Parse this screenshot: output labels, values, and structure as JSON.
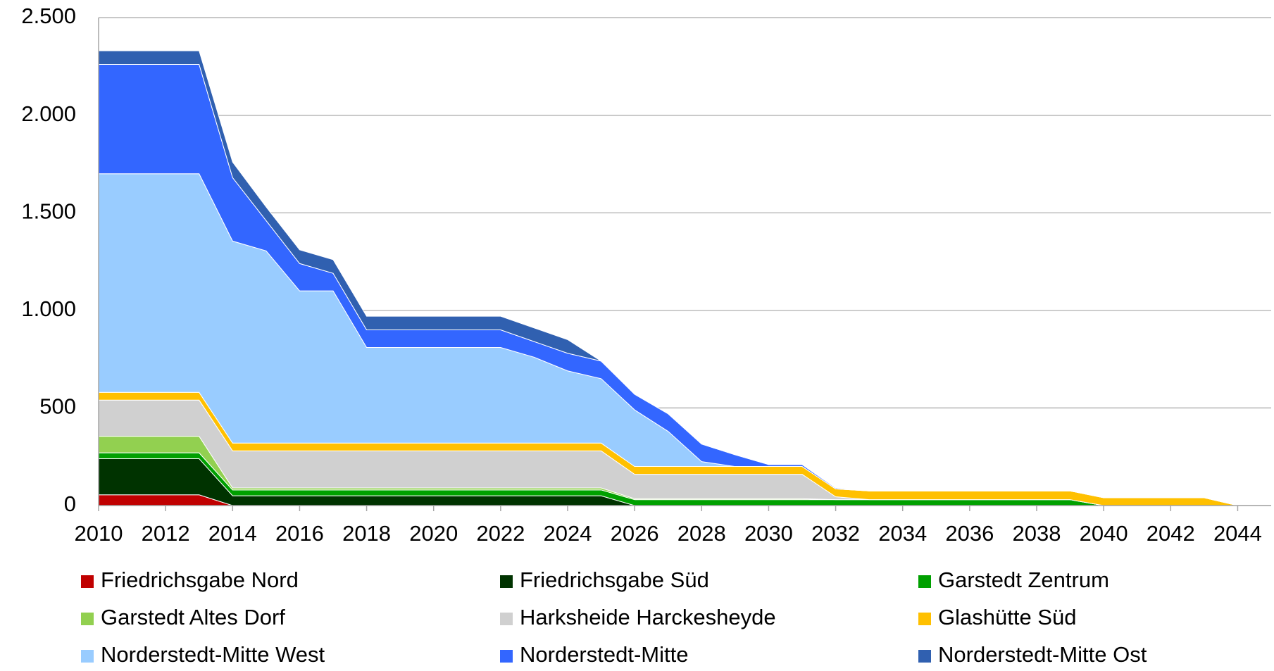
{
  "chart_data": {
    "type": "stacked_area",
    "x": [
      2010,
      2011,
      2012,
      2013,
      2014,
      2015,
      2016,
      2017,
      2018,
      2019,
      2020,
      2021,
      2022,
      2023,
      2024,
      2025,
      2026,
      2027,
      2028,
      2029,
      2030,
      2031,
      2032,
      2033,
      2034,
      2035,
      2036,
      2037,
      2038,
      2039,
      2040,
      2041,
      2042,
      2043,
      2044
    ],
    "xlim": [
      2010,
      2045
    ],
    "xticks": [
      2010,
      2012,
      2014,
      2016,
      2018,
      2020,
      2022,
      2024,
      2026,
      2028,
      2030,
      2032,
      2034,
      2036,
      2038,
      2040,
      2042,
      2044
    ],
    "ylim": [
      0,
      2500
    ],
    "yticks": [
      0,
      500,
      {
        "value": 1000,
        "label": "1.000"
      },
      {
        "value": 1500,
        "label": "1.500"
      },
      {
        "value": 2000,
        "label": "2.000"
      },
      {
        "value": 2500,
        "label": "2.500"
      }
    ],
    "grid": true,
    "legend": "bottom",
    "series": [
      {
        "name": "Friedrichsgabe Nord",
        "color": "#c00000",
        "values": [
          55,
          55,
          55,
          55,
          0,
          0,
          0,
          0,
          0,
          0,
          0,
          0,
          0,
          0,
          0,
          0,
          0,
          0,
          0,
          0,
          0,
          0,
          0,
          0,
          0,
          0,
          0,
          0,
          0,
          0,
          0,
          0,
          0,
          0,
          0
        ]
      },
      {
        "name": "Friedrichsgabe Süd",
        "color": "#003300",
        "values": [
          185,
          185,
          185,
          185,
          50,
          50,
          50,
          50,
          50,
          50,
          50,
          50,
          50,
          50,
          50,
          50,
          0,
          0,
          0,
          0,
          0,
          0,
          0,
          0,
          0,
          0,
          0,
          0,
          0,
          0,
          0,
          0,
          0,
          0,
          0
        ]
      },
      {
        "name": "Garstedt Zentrum",
        "color": "#00a000",
        "values": [
          30,
          30,
          30,
          30,
          30,
          30,
          30,
          30,
          30,
          30,
          30,
          30,
          30,
          30,
          30,
          30,
          30,
          30,
          30,
          30,
          30,
          30,
          30,
          30,
          30,
          30,
          30,
          30,
          30,
          30,
          0,
          0,
          0,
          0,
          0
        ]
      },
      {
        "name": "Garstedt Altes Dorf",
        "color": "#92d050",
        "values": [
          85,
          85,
          85,
          85,
          10,
          10,
          10,
          10,
          10,
          10,
          10,
          10,
          10,
          10,
          10,
          10,
          5,
          5,
          5,
          5,
          5,
          5,
          0,
          0,
          0,
          0,
          0,
          0,
          0,
          0,
          0,
          0,
          0,
          0,
          0
        ]
      },
      {
        "name": "Harksheide Harckesheyde",
        "color": "#d0d0d0",
        "values": [
          185,
          185,
          185,
          185,
          190,
          190,
          190,
          190,
          190,
          190,
          190,
          190,
          190,
          190,
          190,
          190,
          125,
          125,
          125,
          125,
          125,
          125,
          15,
          0,
          0,
          0,
          0,
          0,
          0,
          0,
          0,
          0,
          0,
          0,
          0
        ]
      },
      {
        "name": "Glashütte Süd",
        "color": "#ffc000",
        "values": [
          40,
          40,
          40,
          40,
          40,
          40,
          40,
          40,
          40,
          40,
          40,
          40,
          40,
          40,
          40,
          40,
          40,
          40,
          40,
          40,
          40,
          40,
          40,
          45,
          45,
          45,
          45,
          45,
          45,
          45,
          40,
          40,
          40,
          40,
          0
        ]
      },
      {
        "name": "Norderstedt-Mitte West",
        "color": "#99ccff",
        "values": [
          1120,
          1120,
          1120,
          1120,
          1035,
          985,
          780,
          780,
          490,
          490,
          490,
          490,
          490,
          440,
          370,
          330,
          290,
          180,
          25,
          0,
          0,
          0,
          0,
          0,
          0,
          0,
          0,
          0,
          0,
          0,
          0,
          0,
          0,
          0,
          0
        ]
      },
      {
        "name": "Norderstedt-Mitte",
        "color": "#3366ff",
        "values": [
          560,
          560,
          560,
          560,
          325,
          155,
          140,
          90,
          90,
          90,
          90,
          90,
          90,
          80,
          90,
          90,
          80,
          90,
          90,
          60,
          10,
          10,
          5,
          0,
          0,
          0,
          0,
          0,
          0,
          0,
          0,
          0,
          0,
          0,
          0
        ]
      },
      {
        "name": "Norderstedt-Mitte Ost",
        "color": "#3060b0",
        "values": [
          70,
          70,
          70,
          70,
          80,
          70,
          70,
          70,
          70,
          70,
          70,
          70,
          70,
          70,
          70,
          0,
          0,
          0,
          0,
          0,
          0,
          0,
          0,
          0,
          0,
          0,
          0,
          0,
          0,
          0,
          0,
          0,
          0,
          0,
          0
        ]
      }
    ]
  }
}
